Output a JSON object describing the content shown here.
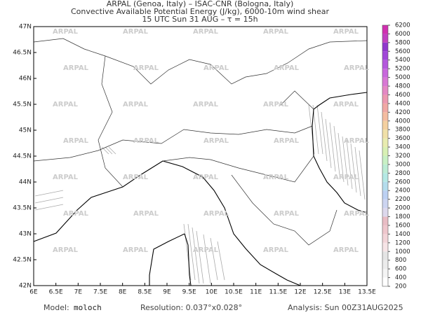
{
  "header": {
    "lines": [
      "ARPAL (Genoa, Italy)  –  ISAC-CNR (Bologna, Italy)",
      "Convective Available Potential Energy (J/kg), 6000-10m wind shear",
      "15 UTC Sun 31 AUG  –  τ = 15h"
    ]
  },
  "map": {
    "xlim": [
      6,
      13.5
    ],
    "ylim": [
      42,
      47
    ],
    "watermark": "ARPAL",
    "xticks": [
      {
        "value": 6,
        "label": "6E"
      },
      {
        "value": 6.5,
        "label": "6.5E"
      },
      {
        "value": 7,
        "label": "7E"
      },
      {
        "value": 7.5,
        "label": "7.5E"
      },
      {
        "value": 8,
        "label": "8E"
      },
      {
        "value": 8.5,
        "label": "8.5E"
      },
      {
        "value": 9,
        "label": "9E"
      },
      {
        "value": 9.5,
        "label": "9.5E"
      },
      {
        "value": 10,
        "label": "10E"
      },
      {
        "value": 10.5,
        "label": "10.5E"
      },
      {
        "value": 11,
        "label": "11E"
      },
      {
        "value": 11.5,
        "label": "11.5E"
      },
      {
        "value": 12,
        "label": "12E"
      },
      {
        "value": 12.5,
        "label": "12.5E"
      },
      {
        "value": 13,
        "label": "13E"
      },
      {
        "value": 13.5,
        "label": "13.5E"
      }
    ],
    "yticks": [
      {
        "value": 42,
        "label": "42N"
      },
      {
        "value": 42.5,
        "label": "42.5N"
      },
      {
        "value": 43,
        "label": "43N"
      },
      {
        "value": 43.5,
        "label": "43.5N"
      },
      {
        "value": 44,
        "label": "44N"
      },
      {
        "value": 44.5,
        "label": "44.5N"
      },
      {
        "value": 45,
        "label": "45N"
      },
      {
        "value": 45.5,
        "label": "45.5N"
      },
      {
        "value": 46,
        "label": "46N"
      },
      {
        "value": 46.5,
        "label": "46.5N"
      },
      {
        "value": 47,
        "label": "47N"
      }
    ]
  },
  "colorbar": {
    "levels": [
      200,
      400,
      600,
      800,
      1000,
      1200,
      1400,
      1600,
      1800,
      2000,
      2200,
      2400,
      2600,
      2800,
      3000,
      3200,
      3400,
      3600,
      3800,
      4000,
      4200,
      4400,
      4600,
      4800,
      5000,
      5200,
      5400,
      5600,
      5800,
      6000,
      6200
    ],
    "colors": [
      "#ffffff",
      "#f4f4f4",
      "#ececec",
      "#e4e4e4",
      "#f6e4e6",
      "#f2d4d8",
      "#eec6cc",
      "#e8bcc4",
      "#dcd8ec",
      "#ccd4f0",
      "#bcd0f2",
      "#b4dcec",
      "#b4e8e4",
      "#bcecd4",
      "#c8f0c4",
      "#d8f0b4",
      "#e8ecb0",
      "#f0e0a8",
      "#f4d0a0",
      "#f4bca0",
      "#f0a8a4",
      "#ec98b0",
      "#e488c4",
      "#d878d4",
      "#c868dc",
      "#b458dc",
      "#a048d8",
      "#9038cc",
      "#c040c0",
      "#d030b0"
    ]
  },
  "footer": {
    "model_label": "Model:",
    "model": "moloch",
    "resolution": "Resolution: 0.037°x0.028°",
    "analysis": "Analysis: Sun 00Z31AUG2025"
  }
}
